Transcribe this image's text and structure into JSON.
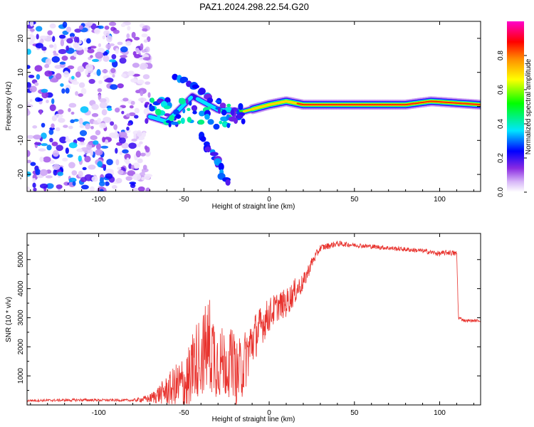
{
  "title": "PAZ1.2024.298.22.54.G20",
  "chart_data": [
    {
      "type": "heatmap",
      "xlabel": "Height of straight line (km)",
      "ylabel": "Frequency (Hz)",
      "xlim": [
        -142,
        124
      ],
      "ylim": [
        -25,
        25
      ],
      "xticks": [
        -100,
        -50,
        0,
        50,
        100
      ],
      "yticks": [
        -20,
        -10,
        0,
        10,
        20
      ],
      "colorbar": {
        "label": "Normalized spectral amplitude",
        "range": [
          0,
          1
        ],
        "ticks": [
          "0.0",
          "0.2",
          "0.4",
          "0.6",
          "0.8"
        ],
        "tick_values": [
          0.0,
          0.2,
          0.4,
          0.6,
          0.8
        ],
        "colormap": "white-violet-blue-cyan-green-yellow-orange-red-magenta"
      },
      "ridge": {
        "description": "main spectral line",
        "points": [
          {
            "x": -70,
            "y": -3.0,
            "amp": 0.45
          },
          {
            "x": -60,
            "y": -4.5,
            "amp": 0.5
          },
          {
            "x": -45,
            "y": 3.0,
            "amp": 0.35
          },
          {
            "x": -30,
            "y": -1.0,
            "amp": 0.4
          },
          {
            "x": -15,
            "y": -1.5,
            "amp": 0.7
          },
          {
            "x": 0,
            "y": 0.5,
            "amp": 0.8
          },
          {
            "x": 10,
            "y": 1.5,
            "amp": 0.75
          },
          {
            "x": 20,
            "y": 0.5,
            "amp": 0.9
          },
          {
            "x": 50,
            "y": 0.5,
            "amp": 0.97
          },
          {
            "x": 80,
            "y": 0.5,
            "amp": 0.95
          },
          {
            "x": 95,
            "y": 1.5,
            "amp": 0.9
          },
          {
            "x": 124,
            "y": 0.5,
            "amp": 0.95
          }
        ]
      },
      "branches": [
        {
          "description": "upper arm",
          "points": [
            {
              "x": -55,
              "y": 9
            },
            {
              "x": -45,
              "y": 6
            },
            {
              "x": -35,
              "y": 3
            }
          ]
        },
        {
          "description": "lower arm",
          "points": [
            {
              "x": -40,
              "y": -8
            },
            {
              "x": -35,
              "y": -13
            },
            {
              "x": -30,
              "y": -17
            },
            {
              "x": -25,
              "y": -22
            }
          ]
        }
      ],
      "noise_region": {
        "x": [
          -142,
          -70
        ],
        "y": [
          -25,
          25
        ],
        "amp_range": [
          0.02,
          0.35
        ]
      }
    },
    {
      "type": "line",
      "xlabel": "Height of straight line (km)",
      "ylabel": "SNR (10 * v/v)",
      "xlim": [
        -142,
        124
      ],
      "ylim": [
        0,
        5900
      ],
      "xticks": [
        -100,
        -50,
        0,
        50,
        100
      ],
      "yticks": [
        1000,
        2000,
        3000,
        4000,
        5000
      ],
      "color": "#e8322d",
      "envelope": {
        "x": [
          -142,
          -110,
          -80,
          -70,
          -60,
          -50,
          -40,
          -35,
          -30,
          -25,
          -20,
          -15,
          -10,
          -5,
          0,
          5,
          10,
          15,
          20,
          25,
          30,
          40,
          50,
          60,
          70,
          80,
          90,
          100,
          105,
          110,
          111,
          115,
          124
        ],
        "base": [
          150,
          170,
          160,
          220,
          500,
          700,
          900,
          1000,
          700,
          800,
          900,
          1400,
          2200,
          2700,
          3100,
          3400,
          3500,
          3900,
          4200,
          4900,
          5400,
          5550,
          5500,
          5450,
          5400,
          5350,
          5300,
          5200,
          5250,
          5200,
          3000,
          2900,
          2900
        ],
        "noise": [
          40,
          50,
          40,
          150,
          500,
          1100,
          1700,
          2200,
          1600,
          1400,
          1200,
          1100,
          900,
          700,
          600,
          500,
          500,
          450,
          300,
          200,
          120,
          100,
          80,
          80,
          80,
          80,
          80,
          90,
          100,
          100,
          60,
          50,
          50
        ]
      }
    }
  ]
}
